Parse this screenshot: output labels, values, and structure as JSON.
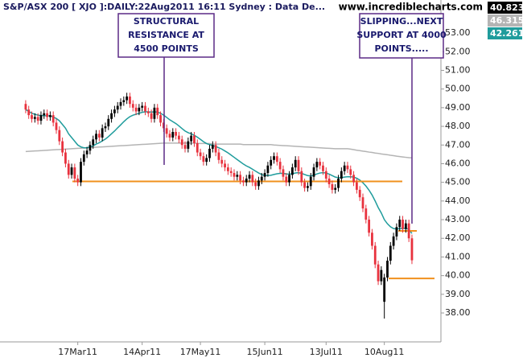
{
  "chart_data": {
    "type": "candlestick",
    "title": "S&P/ASX 200 [ XJO ]:DAILY:22Aug2011 16:11 Sydney : Data De...",
    "source": "www.incrediblecharts.com",
    "categories": [
      null,
      null,
      null,
      null,
      null,
      null,
      null,
      null,
      null,
      null,
      null,
      null,
      null,
      null,
      null,
      null,
      null,
      "17Mar11",
      null,
      null,
      null,
      null,
      null,
      null,
      null,
      null,
      null,
      null,
      null,
      null,
      null,
      null,
      null,
      null,
      null,
      null,
      null,
      null,
      "14Apr11",
      null,
      null,
      null,
      null,
      null,
      null,
      null,
      null,
      null,
      null,
      null,
      null,
      null,
      null,
      null,
      null,
      null,
      null,
      "17May11",
      null,
      null,
      null,
      null,
      null,
      null,
      null,
      null,
      null,
      null,
      null,
      null,
      null,
      null,
      null,
      null,
      null,
      null,
      null,
      null,
      "15Jun11",
      null,
      null,
      null,
      null,
      null,
      null,
      null,
      null,
      null,
      null,
      null,
      null,
      null,
      null,
      null,
      null,
      null,
      null,
      null,
      "13Jul11",
      null,
      null,
      null,
      null,
      null,
      null,
      null,
      null,
      null,
      null,
      null,
      null,
      null,
      null,
      null,
      null,
      null,
      null,
      "10Aug11",
      null,
      null,
      null,
      null,
      null,
      null,
      null,
      null,
      null
    ],
    "open": [
      49.2,
      48.9,
      48.6,
      48.4,
      48.5,
      48.3,
      48.6,
      48.7,
      48.5,
      48.6,
      48.2,
      47.8,
      47.2,
      46.6,
      46.0,
      45.4,
      45.8,
      45.2,
      45.0,
      46.1,
      46.5,
      46.7,
      47.0,
      47.3,
      47.6,
      47.4,
      47.9,
      48.0,
      48.4,
      48.7,
      48.9,
      49.1,
      49.3,
      49.4,
      49.6,
      49.2,
      49.0,
      48.8,
      49.0,
      49.1,
      48.8,
      48.7,
      48.4,
      49.0,
      48.6,
      48.2,
      47.9,
      47.6,
      47.4,
      47.7,
      47.5,
      47.3,
      47.0,
      46.8,
      47.2,
      47.5,
      47.1,
      46.6,
      46.4,
      46.1,
      46.3,
      46.8,
      47.0,
      46.6,
      46.2,
      46.0,
      45.8,
      45.6,
      45.5,
      45.3,
      45.4,
      45.1,
      45.0,
      45.2,
      45.4,
      45.0,
      44.8,
      45.1,
      45.3,
      45.5,
      45.9,
      46.2,
      46.4,
      46.1,
      45.7,
      45.3,
      45.0,
      45.4,
      45.8,
      46.2,
      45.6,
      45.0,
      44.7,
      44.8,
      45.3,
      45.8,
      46.1,
      45.9,
      45.6,
      45.2,
      44.9,
      44.6,
      44.7,
      45.2,
      45.6,
      45.9,
      45.7,
      45.4,
      45.0,
      44.6,
      44.2,
      43.6,
      43.0,
      42.3,
      41.6,
      40.6,
      39.7,
      38.6,
      39.9,
      40.8,
      41.6,
      42.1,
      42.6,
      43.0,
      42.5,
      42.8,
      42.0
    ],
    "high": [
      49.4,
      49.1,
      48.8,
      48.7,
      48.7,
      48.8,
      48.9,
      48.9,
      48.8,
      48.8,
      48.4,
      48.0,
      47.4,
      46.8,
      46.2,
      46.0,
      46.0,
      45.4,
      46.3,
      46.7,
      46.9,
      47.2,
      47.5,
      47.8,
      47.8,
      48.1,
      48.2,
      48.6,
      48.9,
      49.1,
      49.3,
      49.5,
      49.6,
      49.8,
      49.8,
      49.4,
      49.2,
      49.2,
      49.3,
      49.3,
      49.0,
      48.9,
      49.2,
      49.2,
      48.8,
      48.4,
      48.1,
      47.8,
      47.9,
      47.9,
      47.7,
      47.5,
      47.2,
      47.4,
      47.7,
      47.7,
      47.3,
      46.8,
      46.6,
      46.5,
      47.0,
      47.2,
      47.2,
      46.8,
      46.4,
      46.2,
      46.0,
      45.8,
      45.7,
      45.6,
      45.6,
      45.3,
      45.4,
      45.6,
      45.6,
      45.2,
      45.3,
      45.5,
      45.7,
      46.1,
      46.4,
      46.6,
      46.6,
      46.3,
      45.9,
      45.5,
      45.6,
      46.0,
      46.4,
      46.4,
      45.8,
      45.2,
      45.0,
      45.5,
      46.0,
      46.3,
      46.3,
      46.1,
      45.8,
      45.4,
      45.1,
      44.9,
      45.4,
      45.8,
      46.1,
      46.1,
      45.9,
      45.6,
      45.2,
      44.8,
      44.4,
      43.8,
      43.2,
      42.5,
      41.8,
      40.8,
      40.5,
      40.1,
      41.0,
      41.8,
      42.3,
      42.8,
      43.2,
      43.2,
      43.0,
      43.0,
      42.2
    ],
    "low": [
      48.7,
      48.4,
      48.2,
      48.2,
      48.1,
      48.1,
      48.4,
      48.3,
      48.3,
      48.0,
      47.6,
      47.0,
      46.4,
      45.8,
      45.2,
      45.2,
      45.0,
      44.8,
      44.8,
      45.9,
      46.3,
      46.5,
      46.8,
      47.1,
      47.2,
      47.2,
      47.7,
      47.8,
      48.2,
      48.5,
      48.7,
      48.9,
      49.1,
      49.2,
      49.0,
      48.8,
      48.6,
      48.6,
      48.8,
      48.6,
      48.5,
      48.2,
      48.2,
      48.4,
      48.0,
      47.7,
      47.4,
      47.2,
      47.2,
      47.3,
      47.1,
      46.8,
      46.6,
      46.6,
      47.0,
      46.9,
      46.4,
      46.2,
      45.9,
      45.9,
      46.1,
      46.6,
      46.4,
      46.0,
      45.8,
      45.6,
      45.4,
      45.3,
      45.1,
      45.1,
      44.9,
      44.8,
      44.8,
      45.0,
      44.8,
      44.6,
      44.6,
      44.9,
      45.1,
      45.3,
      45.7,
      46.0,
      45.9,
      45.5,
      45.1,
      44.8,
      44.8,
      45.2,
      45.6,
      45.4,
      44.8,
      44.5,
      44.5,
      44.6,
      45.1,
      45.6,
      45.7,
      45.4,
      45.0,
      44.7,
      44.4,
      44.4,
      44.5,
      45.0,
      45.4,
      45.5,
      45.2,
      44.8,
      44.4,
      44.0,
      43.4,
      42.8,
      42.1,
      41.4,
      40.4,
      39.5,
      39.5,
      37.7,
      39.7,
      40.6,
      41.4,
      41.9,
      42.4,
      42.3,
      42.3,
      41.8,
      40.62
    ],
    "close": [
      48.9,
      48.6,
      48.4,
      48.5,
      48.3,
      48.6,
      48.7,
      48.5,
      48.6,
      48.2,
      47.8,
      47.2,
      46.6,
      46.0,
      45.4,
      45.8,
      45.2,
      45.0,
      46.1,
      46.5,
      46.7,
      47.0,
      47.3,
      47.6,
      47.4,
      47.9,
      48.0,
      48.4,
      48.7,
      48.9,
      49.1,
      49.3,
      49.4,
      49.6,
      49.2,
      49.0,
      48.8,
      49.0,
      49.1,
      48.8,
      48.7,
      48.4,
      49.0,
      48.6,
      48.2,
      47.9,
      47.6,
      47.4,
      47.7,
      47.5,
      47.3,
      47.0,
      46.8,
      47.2,
      47.5,
      47.1,
      46.6,
      46.4,
      46.1,
      46.3,
      46.8,
      47.0,
      46.6,
      46.2,
      46.0,
      45.8,
      45.6,
      45.5,
      45.3,
      45.4,
      45.1,
      45.0,
      45.2,
      45.4,
      45.0,
      44.8,
      45.1,
      45.3,
      45.5,
      45.9,
      46.2,
      46.4,
      46.1,
      45.7,
      45.3,
      45.0,
      45.4,
      45.8,
      46.2,
      45.6,
      45.0,
      44.7,
      44.8,
      45.3,
      45.8,
      46.1,
      45.9,
      45.6,
      45.2,
      44.9,
      44.6,
      44.7,
      45.2,
      45.6,
      45.9,
      45.7,
      45.4,
      45.0,
      44.6,
      44.2,
      43.6,
      43.0,
      42.3,
      41.6,
      40.6,
      39.7,
      40.3,
      39.9,
      40.8,
      41.6,
      42.1,
      42.6,
      43.0,
      42.5,
      42.8,
      42.0,
      40.823
    ],
    "up_color": "#000000",
    "down_color": "#e8323e",
    "moving_averages": [
      {
        "color": "#1f9c9c",
        "values": [
          48.9,
          48.8,
          48.7,
          48.65,
          48.6,
          48.58,
          48.58,
          48.56,
          48.56,
          48.5,
          48.42,
          48.3,
          48.1,
          47.9,
          47.6,
          47.4,
          47.2,
          47.0,
          46.9,
          46.85,
          46.85,
          46.9,
          46.95,
          47.05,
          47.12,
          47.22,
          47.32,
          47.45,
          47.6,
          47.75,
          47.92,
          48.08,
          48.25,
          48.4,
          48.52,
          48.6,
          48.65,
          48.7,
          48.75,
          48.78,
          48.78,
          48.76,
          48.78,
          48.76,
          48.7,
          48.6,
          48.48,
          48.35,
          48.25,
          48.15,
          48.02,
          47.88,
          47.75,
          47.66,
          47.6,
          47.52,
          47.42,
          47.3,
          47.18,
          47.08,
          47.02,
          46.98,
          46.92,
          46.85,
          46.78,
          46.68,
          46.58,
          46.46,
          46.34,
          46.22,
          46.1,
          45.98,
          45.88,
          45.8,
          45.7,
          45.6,
          45.5,
          45.42,
          45.36,
          45.36,
          45.38,
          45.42,
          45.46,
          45.48,
          45.48,
          45.45,
          45.44,
          45.46,
          45.5,
          45.52,
          45.48,
          45.42,
          45.36,
          45.34,
          45.38,
          45.45,
          45.5,
          45.52,
          45.5,
          45.44,
          45.36,
          45.28,
          45.25,
          45.25,
          45.28,
          45.3,
          45.3,
          45.28,
          45.22,
          45.12,
          44.98,
          44.8,
          44.58,
          44.32,
          44.0,
          43.65,
          43.36,
          43.0,
          42.78,
          42.62,
          42.52,
          42.5,
          42.52,
          42.52,
          42.54,
          42.48,
          42.2613
        ]
      },
      {
        "color": "#b4b4b4",
        "values": [
          46.65,
          46.66,
          46.67,
          46.68,
          46.69,
          46.7,
          46.71,
          46.72,
          46.73,
          46.74,
          46.75,
          46.76,
          46.77,
          46.78,
          46.79,
          46.8,
          46.81,
          46.82,
          46.83,
          46.84,
          46.85,
          46.86,
          46.87,
          46.88,
          46.89,
          46.9,
          46.91,
          46.92,
          46.93,
          46.94,
          46.95,
          46.96,
          46.97,
          46.98,
          46.99,
          47.0,
          47.01,
          47.02,
          47.03,
          47.04,
          47.05,
          47.06,
          47.07,
          47.08,
          47.09,
          47.1,
          47.1,
          47.1,
          47.1,
          47.1,
          47.1,
          47.1,
          47.1,
          47.1,
          47.1,
          47.1,
          47.08,
          47.08,
          47.08,
          47.08,
          47.08,
          47.05,
          47.05,
          47.05,
          47.05,
          47.05,
          47.05,
          47.05,
          47.05,
          47.05,
          47.05,
          47.02,
          47.02,
          47.02,
          47.02,
          47.02,
          47.02,
          47.02,
          47.02,
          47.02,
          47.02,
          47.0,
          46.99,
          46.98,
          46.97,
          46.96,
          46.95,
          46.94,
          46.93,
          46.92,
          46.91,
          46.9,
          46.89,
          46.88,
          46.87,
          46.86,
          46.85,
          46.84,
          46.83,
          46.82,
          46.81,
          46.8,
          46.8,
          46.8,
          46.8,
          46.8,
          46.78,
          46.75,
          46.72,
          46.7,
          46.67,
          46.65,
          46.62,
          46.6,
          46.57,
          46.55,
          46.52,
          46.5,
          46.48,
          46.45,
          46.43,
          46.4,
          46.38,
          46.36,
          46.34,
          46.32,
          46.3158
        ]
      }
    ],
    "levels": [
      {
        "value": 45.05,
        "color": "#f0901e"
      },
      {
        "value": 42.4,
        "color": "#f0901e"
      },
      {
        "value": 39.85,
        "color": "#f0901e"
      }
    ],
    "annotations": [
      {
        "lines": [
          "STRUCTURAL",
          "RESISTANCE AT",
          "4500 POINTS"
        ]
      },
      {
        "lines": [
          "SLIPPING...NEXT",
          "SUPPORT AT 4000",
          "POINTS....."
        ]
      }
    ],
    "ylim": [
      36.45,
      54.77
    ],
    "yticks": [
      {
        "value": 38,
        "label": "38.00"
      },
      {
        "value": 39,
        "label": "39.00"
      },
      {
        "value": 40,
        "label": "40.00"
      },
      {
        "value": 41,
        "label": "41.00"
      },
      {
        "value": 42,
        "label": "42.00"
      },
      {
        "value": 43,
        "label": "43.00"
      },
      {
        "value": 44,
        "label": "44.00"
      },
      {
        "value": 45,
        "label": "45.00"
      },
      {
        "value": 46,
        "label": "46.00"
      },
      {
        "value": 47,
        "label": "47.00"
      },
      {
        "value": 48,
        "label": "48.00"
      },
      {
        "value": 49,
        "label": "49.00"
      },
      {
        "value": 50,
        "label": "50.00"
      },
      {
        "value": 51,
        "label": "51.00"
      },
      {
        "value": 52,
        "label": "52.00"
      },
      {
        "value": 53,
        "label": "53.00"
      }
    ]
  }
}
